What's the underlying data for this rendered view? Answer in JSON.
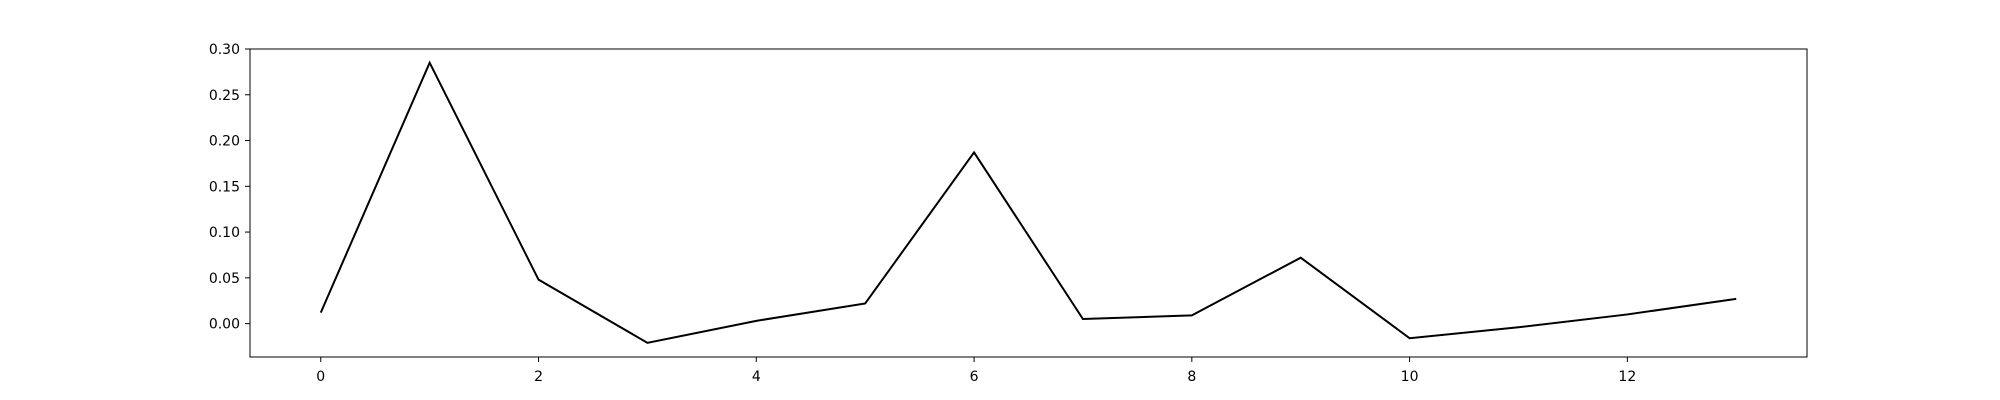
{
  "chart_data": {
    "type": "line",
    "title": "",
    "xlabel": "",
    "ylabel": "",
    "x": [
      0,
      1,
      2,
      3,
      4,
      5,
      6,
      7,
      8,
      9,
      10,
      11,
      12,
      13
    ],
    "series": [
      {
        "values": [
          0.012,
          0.285,
          0.048,
          -0.021,
          0.003,
          0.022,
          0.187,
          0.005,
          0.009,
          0.072,
          -0.016,
          -0.004,
          0.01,
          0.027
        ],
        "color": "#000000"
      }
    ],
    "xlim": [
      -0.65,
      13.65
    ],
    "ylim": [
      -0.0365,
      0.3
    ],
    "xticks": [
      0,
      2,
      4,
      6,
      8,
      10,
      12
    ],
    "xtick_labels": [
      "0",
      "2",
      "4",
      "6",
      "8",
      "10",
      "12"
    ],
    "yticks": [
      0.0,
      0.05,
      0.1,
      0.15,
      0.2,
      0.25,
      0.3
    ],
    "ytick_labels": [
      "0.00",
      "0.05",
      "0.10",
      "0.15",
      "0.20",
      "0.25",
      "0.30"
    ],
    "grid": false,
    "legend": "none"
  }
}
